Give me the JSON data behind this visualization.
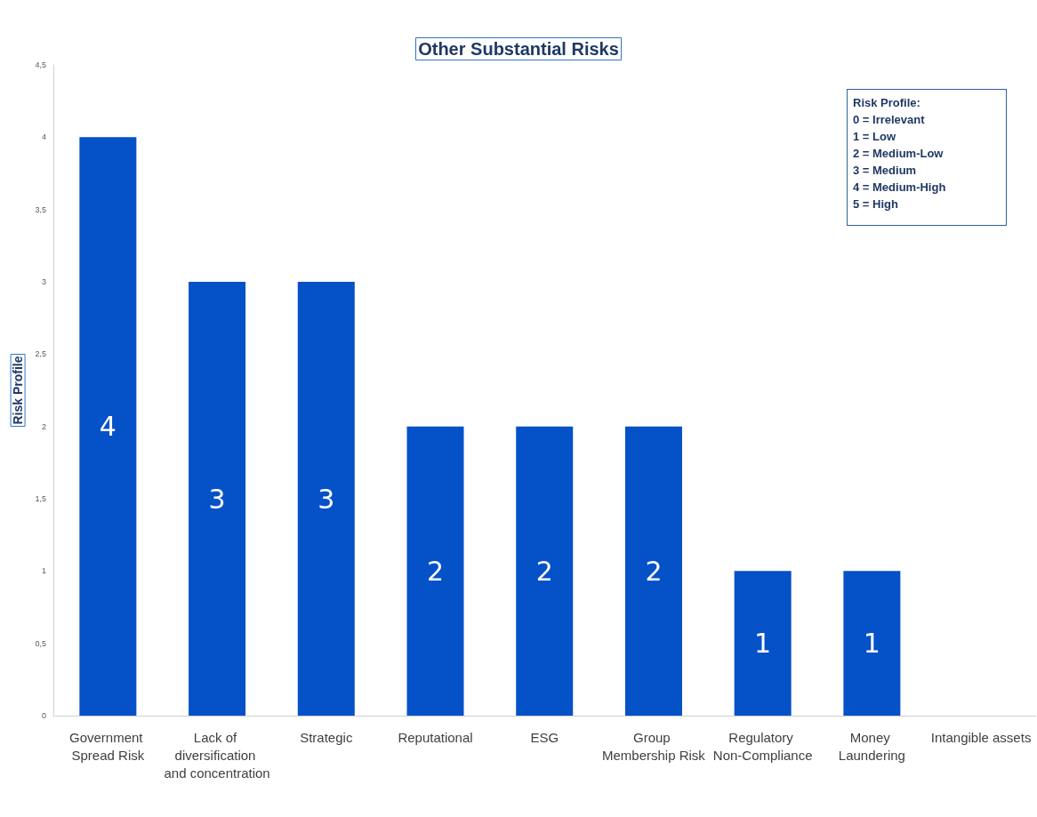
{
  "chart_data": {
    "type": "bar",
    "title": "Other Substantial Risks",
    "ylabel": "Risk Profile",
    "categories": [
      "Government Spread Risk",
      "Lack of diversification and concentration",
      "Strategic",
      "Reputational",
      "ESG",
      "Group Membership Risk",
      "Regulatory Non-Compliance",
      "Money Laundering",
      "Intangible assets"
    ],
    "values": [
      4,
      3,
      3,
      2,
      2,
      2,
      1,
      1,
      0
    ],
    "value_labels": [
      "4",
      "3",
      "3",
      "2",
      "2",
      "2",
      "1",
      "1",
      null
    ],
    "color": "#0551c8",
    "ylim": [
      0,
      4.5
    ],
    "yticks": [
      0,
      {
        "value": 0.5,
        "label": "0,5"
      },
      1,
      {
        "value": 1.5,
        "label": "1,5"
      },
      2,
      {
        "value": 2.5,
        "label": "2,5"
      },
      3,
      {
        "value": 3.5,
        "label": "3,5"
      },
      4,
      {
        "value": 4.5,
        "label": "4,5"
      }
    ],
    "grid": false,
    "annotations": [
      "Risk Profile:",
      "0 = Irrelevant",
      "1 = Low",
      "2 = Medium-Low",
      "3 = Medium",
      "4 = Medium-High",
      "5 = High"
    ]
  }
}
